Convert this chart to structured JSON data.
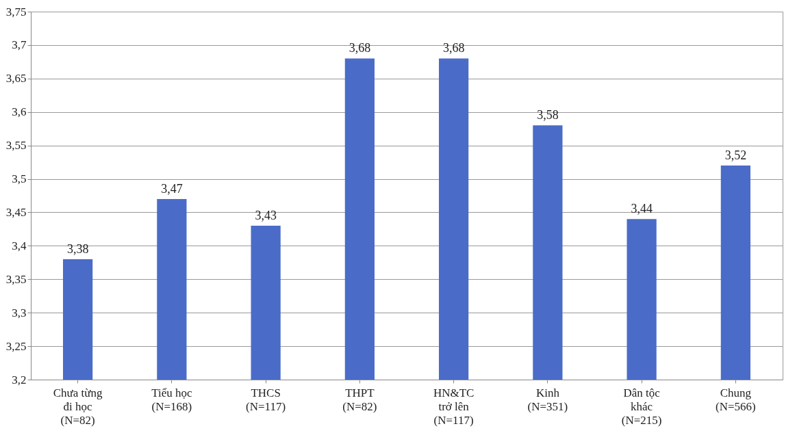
{
  "chart_data": {
    "type": "bar",
    "categories": [
      "Chưa từng\nđi học\n(N=82)",
      "Tiểu học\n(N=168)",
      "THCS\n(N=117)",
      "THPT\n(N=82)",
      "HN&TC\ntrở lên\n(N=117)",
      "Kinh\n(N=351)",
      "Dân tộc\nkhác\n(N=215)",
      "Chung\n(N=566)"
    ],
    "values": [
      3.38,
      3.47,
      3.43,
      3.68,
      3.68,
      3.58,
      3.44,
      3.52
    ],
    "value_labels": [
      "3,38",
      "3,47",
      "3,43",
      "3,68",
      "3,68",
      "3,58",
      "3,44",
      "3,52"
    ],
    "color": "#4a6cc8",
    "ylim": [
      3.2,
      3.75
    ],
    "yticks": [
      {
        "value": 3.2,
        "label": "3,2"
      },
      {
        "value": 3.25,
        "label": "3,25"
      },
      {
        "value": 3.3,
        "label": "3,3"
      },
      {
        "value": 3.35,
        "label": "3,35"
      },
      {
        "value": 3.4,
        "label": "3,4"
      },
      {
        "value": 3.45,
        "label": "3,45"
      },
      {
        "value": 3.5,
        "label": "3,5"
      },
      {
        "value": 3.55,
        "label": "3,55"
      },
      {
        "value": 3.6,
        "label": "3,6"
      },
      {
        "value": 3.65,
        "label": "3,65"
      },
      {
        "value": 3.7,
        "label": "3,7"
      },
      {
        "value": 3.75,
        "label": "3,75"
      }
    ],
    "grid": "y"
  }
}
